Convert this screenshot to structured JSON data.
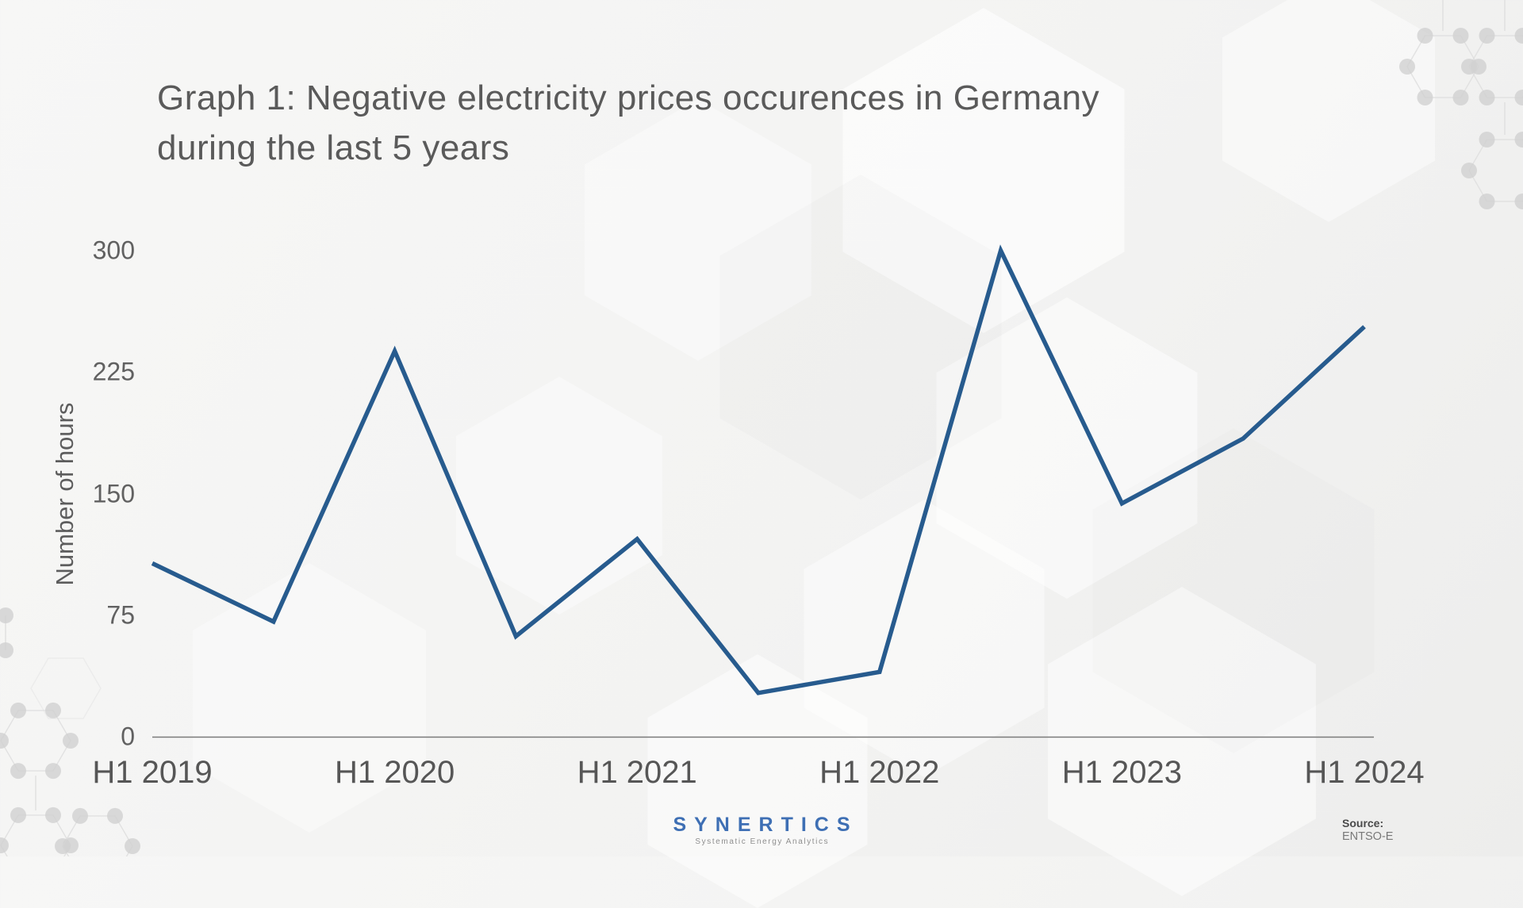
{
  "title": {
    "line1": "Graph 1: Negative electricity prices occurences in Germany",
    "line2": "during the last 5 years"
  },
  "chart_data": {
    "type": "line",
    "title": "Graph 1: Negative electricity prices occurences in Germany during the last 5 years",
    "categories": [
      "H1 2019",
      "H2 2019",
      "H1 2020",
      "H2 2020",
      "H1 2021",
      "H2 2021",
      "H1 2022",
      "H2 2022",
      "H1 2023",
      "H2 2023",
      "H1 2024"
    ],
    "values": [
      107,
      71,
      238,
      62,
      122,
      27,
      40,
      300,
      144,
      184,
      253
    ],
    "xlabel": "",
    "ylabel": "Number of hours",
    "ylim": [
      0,
      300
    ],
    "y_ticks": [
      0,
      75,
      150,
      225,
      300
    ],
    "x_tick_labels": [
      "H1 2019",
      "H1 2020",
      "H1 2021",
      "H1 2022",
      "H1 2023",
      "H1 2024"
    ],
    "grid": false,
    "legend": false,
    "line_color": "#275B8E",
    "axis_color": "#7a7a7a"
  },
  "footer": {
    "brand": "SYNERTICS",
    "brand_tagline": "Systematic Energy Analytics",
    "source_label": "Source:",
    "source_value": "ENTSO-E"
  },
  "colors": {
    "brand_blue": "#3E6FB4",
    "series_line": "#275B8E",
    "title_text": "#5A5A5A",
    "background": "#F3F3F2"
  }
}
